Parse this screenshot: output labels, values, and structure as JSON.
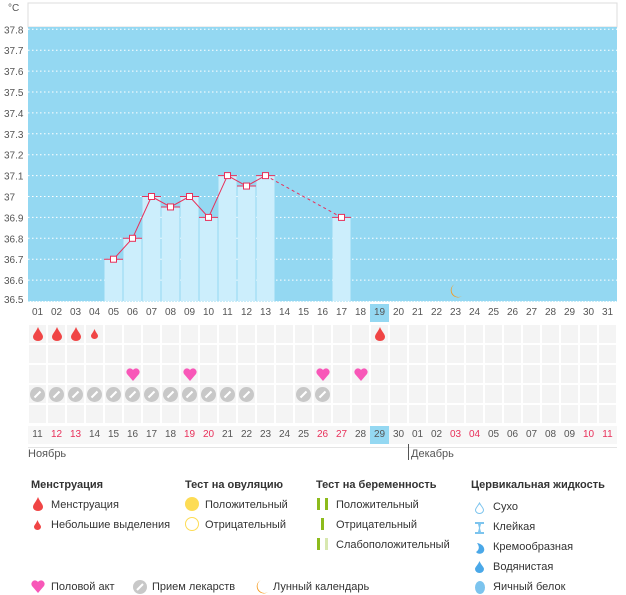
{
  "chart_data": {
    "type": "bar",
    "yunit": "°C",
    "ylim": [
      36.5,
      37.8
    ],
    "yticks": [
      "36.5",
      "36.6",
      "36.7",
      "36.8",
      "36.9",
      "37",
      "37.1",
      "37.2",
      "37.3",
      "37.4",
      "37.5",
      "37.6",
      "37.7",
      "37.8"
    ],
    "cycle_days": [
      "01",
      "02",
      "03",
      "04",
      "05",
      "06",
      "07",
      "08",
      "09",
      "10",
      "11",
      "12",
      "13",
      "14",
      "15",
      "16",
      "17",
      "18",
      "19",
      "20",
      "21",
      "22",
      "23",
      "24",
      "25",
      "26",
      "27",
      "28",
      "29",
      "30",
      "31"
    ],
    "current_cycle_day": "19",
    "temperatures": [
      null,
      null,
      null,
      null,
      36.7,
      36.8,
      37.0,
      36.95,
      37.0,
      36.9,
      37.1,
      37.05,
      37.1,
      null,
      null,
      null,
      36.9,
      null,
      null,
      null,
      null,
      null,
      null,
      null,
      null,
      null,
      null,
      null,
      null,
      null,
      null
    ],
    "grid": true,
    "colors": {
      "background": "#94d8f2",
      "bar": "#cceefc",
      "line": "#e8305a"
    }
  },
  "calendar": {
    "dates": [
      "11",
      "12",
      "13",
      "14",
      "15",
      "16",
      "17",
      "18",
      "19",
      "20",
      "21",
      "22",
      "23",
      "24",
      "25",
      "26",
      "27",
      "28",
      "29",
      "30",
      "01",
      "02",
      "03",
      "04",
      "05",
      "06",
      "07",
      "08",
      "09",
      "10",
      "11"
    ],
    "weekend_days": [
      2,
      3,
      9,
      10,
      16,
      17,
      23,
      24,
      30,
      31
    ],
    "today_index": 19,
    "months": [
      "Ноябрь",
      "Декабрь"
    ]
  },
  "markers": {
    "menstruation_heavy": [
      1,
      2,
      3,
      19
    ],
    "menstruation_light": [
      4
    ],
    "intercourse": [
      6,
      9,
      16,
      18
    ],
    "medication": [
      1,
      2,
      3,
      4,
      5,
      6,
      7,
      8,
      9,
      10,
      11,
      12,
      15,
      16
    ],
    "moon": [
      23
    ]
  },
  "legend": {
    "menstruation": {
      "title": "Менструация",
      "items": [
        "Менструация",
        "Небольшие выделения"
      ]
    },
    "ovulation": {
      "title": "Тест на овуляцию",
      "items": [
        "Положительный",
        "Отрицательный"
      ]
    },
    "pregnancy": {
      "title": "Тест на беременность",
      "items": [
        "Положительный",
        "Отрицательный",
        "Слабоположительный"
      ]
    },
    "cervical": {
      "title": "Цервикальная жидкость",
      "items": [
        "Сухо",
        "Клейкая",
        "Кремообразная",
        "Водянистая",
        "Яичный белок"
      ]
    },
    "other": [
      "Половой акт",
      "Прием лекарств",
      "Лунный календарь"
    ]
  }
}
